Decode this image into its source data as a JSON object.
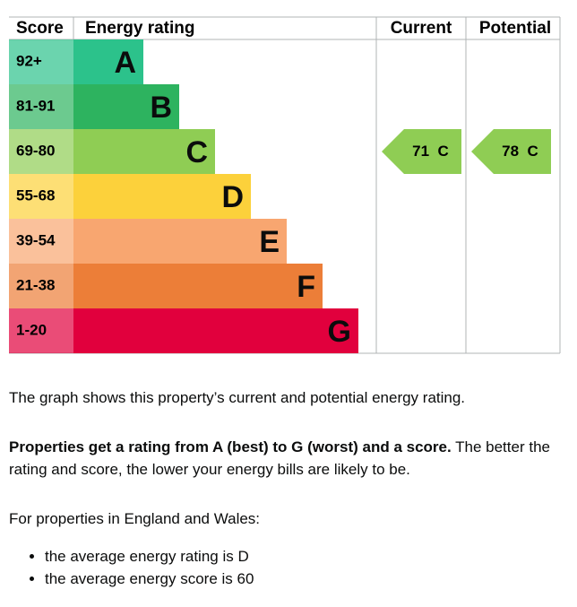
{
  "header": {
    "score": "Score",
    "rating": "Energy rating",
    "current": "Current",
    "potential": "Potential"
  },
  "bands": [
    {
      "score": "92+",
      "letter": "A",
      "color": "#2cc28b"
    },
    {
      "score": "81-91",
      "letter": "B",
      "color": "#2db35f"
    },
    {
      "score": "69-80",
      "letter": "C",
      "color": "#8fcd54"
    },
    {
      "score": "55-68",
      "letter": "D",
      "color": "#fcd13b"
    },
    {
      "score": "39-54",
      "letter": "E",
      "color": "#f8a670"
    },
    {
      "score": "21-38",
      "letter": "F",
      "color": "#ec7e38"
    },
    {
      "score": "1-20",
      "letter": "G",
      "color": "#e1003d"
    }
  ],
  "current": {
    "score": 71,
    "rating": "C"
  },
  "potential": {
    "score": 78,
    "rating": "C"
  },
  "text": {
    "intro": "The graph shows this property’s current and potential energy rating.",
    "bold": "Properties get a rating from A (best) to G (worst) and a score.",
    "rest": " The better the rating and score, the lower your energy bills are likely to be.",
    "region": "For properties in England and Wales:",
    "bullets": [
      "the average energy rating is D",
      "the average energy score is 60"
    ]
  }
}
